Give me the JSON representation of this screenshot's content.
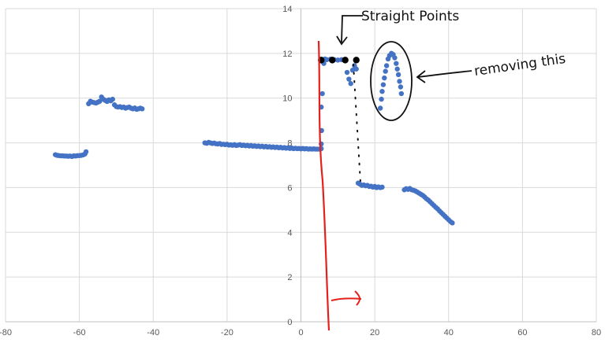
{
  "chart_data": {
    "type": "scatter",
    "xlim": [
      -80,
      80
    ],
    "ylim": [
      0,
      14
    ],
    "x_ticks": [
      -80,
      -60,
      -40,
      -20,
      0,
      20,
      40,
      60,
      80
    ],
    "y_ticks": [
      0,
      2,
      4,
      6,
      8,
      10,
      12,
      14
    ],
    "grid": true,
    "series": [
      {
        "color": "#4472C4",
        "points": [
          [
            -66.5,
            7.47
          ],
          [
            -66,
            7.44
          ],
          [
            -65.5,
            7.43
          ],
          [
            -65,
            7.42
          ],
          [
            -64.5,
            7.42
          ],
          [
            -64,
            7.41
          ],
          [
            -63.5,
            7.41
          ],
          [
            -63,
            7.4
          ],
          [
            -62.5,
            7.41
          ],
          [
            -62,
            7.39
          ],
          [
            -61.5,
            7.42
          ],
          [
            -61,
            7.41
          ],
          [
            -60.5,
            7.43
          ],
          [
            -60,
            7.43
          ],
          [
            -59.5,
            7.44
          ],
          [
            -59,
            7.46
          ],
          [
            -58.5,
            7.5
          ],
          [
            -58.2,
            7.6
          ],
          [
            -57.5,
            9.75
          ],
          [
            -57,
            9.86
          ],
          [
            -56.5,
            9.82
          ],
          [
            -56,
            9.8
          ],
          [
            -55.5,
            9.78
          ],
          [
            -55,
            9.82
          ],
          [
            -54.5,
            9.86
          ],
          [
            -54,
            10.05
          ],
          [
            -53.5,
            9.95
          ],
          [
            -53,
            9.9
          ],
          [
            -52.5,
            9.85
          ],
          [
            -52,
            9.92
          ],
          [
            -51.5,
            9.88
          ],
          [
            -51,
            9.95
          ],
          [
            -50.5,
            9.7
          ],
          [
            -50,
            9.62
          ],
          [
            -49.5,
            9.6
          ],
          [
            -49,
            9.62
          ],
          [
            -48.5,
            9.58
          ],
          [
            -48,
            9.6
          ],
          [
            -47.5,
            9.55
          ],
          [
            -47,
            9.58
          ],
          [
            -46.5,
            9.6
          ],
          [
            -46,
            9.55
          ],
          [
            -45.5,
            9.52
          ],
          [
            -45,
            9.56
          ],
          [
            -44.5,
            9.5
          ],
          [
            -44,
            9.52
          ],
          [
            -43.5,
            9.55
          ],
          [
            -43,
            9.52
          ],
          [
            -26,
            8.0
          ],
          [
            -25.5,
            7.98
          ],
          [
            -25,
            8.02
          ],
          [
            -24.5,
            8.0
          ],
          [
            -24,
            7.97
          ],
          [
            -23.5,
            7.99
          ],
          [
            -23,
            7.96
          ],
          [
            -22.5,
            7.95
          ],
          [
            -22,
            7.97
          ],
          [
            -21.5,
            7.93
          ],
          [
            -21,
            7.94
          ],
          [
            -20.5,
            7.92
          ],
          [
            -20,
            7.94
          ],
          [
            -19.5,
            7.9
          ],
          [
            -19,
            7.91
          ],
          [
            -18.5,
            7.89
          ],
          [
            -18,
            7.92
          ],
          [
            -17.5,
            7.88
          ],
          [
            -17,
            7.9
          ],
          [
            -16.5,
            7.92
          ],
          [
            -16,
            7.88
          ],
          [
            -15.5,
            7.9
          ],
          [
            -15,
            7.87
          ],
          [
            -14.5,
            7.89
          ],
          [
            -14,
            7.86
          ],
          [
            -13.5,
            7.88
          ],
          [
            -13,
            7.85
          ],
          [
            -12.5,
            7.87
          ],
          [
            -12,
            7.84
          ],
          [
            -11.5,
            7.86
          ],
          [
            -11,
            7.83
          ],
          [
            -10.5,
            7.85
          ],
          [
            -10,
            7.82
          ],
          [
            -9.5,
            7.84
          ],
          [
            -9,
            7.81
          ],
          [
            -8.5,
            7.83
          ],
          [
            -8,
            7.8
          ],
          [
            -7.5,
            7.82
          ],
          [
            -7,
            7.79
          ],
          [
            -6.5,
            7.81
          ],
          [
            -6,
            7.78
          ],
          [
            -5.5,
            7.8
          ],
          [
            -5,
            7.77
          ],
          [
            -4.5,
            7.79
          ],
          [
            -4,
            7.76
          ],
          [
            -3.5,
            7.78
          ],
          [
            -3,
            7.75
          ],
          [
            -2.5,
            7.77
          ],
          [
            -2,
            7.74
          ],
          [
            -1.5,
            7.76
          ],
          [
            -1,
            7.74
          ],
          [
            -0.5,
            7.75
          ],
          [
            0,
            7.73
          ],
          [
            0.5,
            7.75
          ],
          [
            1,
            7.73
          ],
          [
            1.5,
            7.74
          ],
          [
            2,
            7.72
          ],
          [
            2.5,
            7.73
          ],
          [
            3,
            7.72
          ],
          [
            3.5,
            7.73
          ],
          [
            4,
            7.72
          ],
          [
            4.5,
            7.72
          ],
          [
            5,
            7.72
          ],
          [
            5.5,
            7.74
          ],
          [
            5.5,
            7.95
          ],
          [
            5.6,
            8.55
          ],
          [
            5.5,
            9.6
          ],
          [
            5.8,
            10.2
          ],
          [
            6.2,
            11.55
          ],
          [
            6.5,
            11.75
          ],
          [
            7,
            11.72
          ],
          [
            8,
            11.74
          ],
          [
            9,
            11.72
          ],
          [
            10,
            11.7
          ],
          [
            11,
            11.72
          ],
          [
            12,
            11.68
          ],
          [
            12.5,
            11.15
          ],
          [
            13,
            10.85
          ],
          [
            13.5,
            10.65
          ],
          [
            14,
            11.25
          ],
          [
            14.5,
            11.45
          ],
          [
            15,
            11.3
          ],
          [
            15.5,
            6.2
          ],
          [
            16,
            6.15
          ],
          [
            16.5,
            6.1
          ],
          [
            17,
            6.12
          ],
          [
            17.5,
            6.08
          ],
          [
            18,
            6.1
          ],
          [
            18.5,
            6.05
          ],
          [
            19,
            6.06
          ],
          [
            19.5,
            6.02
          ],
          [
            20,
            6.05
          ],
          [
            20.5,
            6.0
          ],
          [
            21,
            6.03
          ],
          [
            21.5,
            6.0
          ],
          [
            22,
            6.02
          ],
          [
            21.5,
            9.55
          ],
          [
            21.8,
            9.95
          ],
          [
            22,
            10.3
          ],
          [
            22.3,
            10.6
          ],
          [
            22.6,
            10.9
          ],
          [
            22.9,
            11.2
          ],
          [
            23.2,
            11.45
          ],
          [
            23.6,
            11.75
          ],
          [
            24,
            11.9
          ],
          [
            24.5,
            12.0
          ],
          [
            25,
            11.95
          ],
          [
            25.4,
            11.8
          ],
          [
            25.8,
            11.55
          ],
          [
            26.1,
            11.3
          ],
          [
            26.4,
            11.05
          ],
          [
            26.7,
            10.75
          ],
          [
            27,
            10.5
          ],
          [
            27.2,
            10.2
          ],
          [
            28,
            5.9
          ],
          [
            28.5,
            5.95
          ],
          [
            29,
            5.92
          ],
          [
            29.5,
            5.96
          ],
          [
            30,
            5.9
          ],
          [
            30.5,
            5.88
          ],
          [
            31,
            5.85
          ],
          [
            31.5,
            5.8
          ],
          [
            32,
            5.75
          ],
          [
            32.5,
            5.7
          ],
          [
            33,
            5.65
          ],
          [
            33.5,
            5.58
          ],
          [
            34,
            5.5
          ],
          [
            34.5,
            5.44
          ],
          [
            35,
            5.36
          ],
          [
            35.5,
            5.28
          ],
          [
            36,
            5.2
          ],
          [
            36.5,
            5.12
          ],
          [
            37,
            5.05
          ],
          [
            37.5,
            4.96
          ],
          [
            38,
            4.88
          ],
          [
            38.5,
            4.8
          ],
          [
            39,
            4.72
          ],
          [
            39.5,
            4.64
          ],
          [
            40,
            4.56
          ],
          [
            40.5,
            4.48
          ],
          [
            41,
            4.42
          ]
        ]
      },
      {
        "color": "#000000",
        "points": [
          [
            5.5,
            11.7
          ],
          [
            8.5,
            11.7
          ],
          [
            12,
            11.7
          ],
          [
            15,
            11.7
          ]
        ]
      }
    ],
    "annotations": {
      "label_straight": "Straight Points",
      "label_removing": "removing this"
    }
  }
}
